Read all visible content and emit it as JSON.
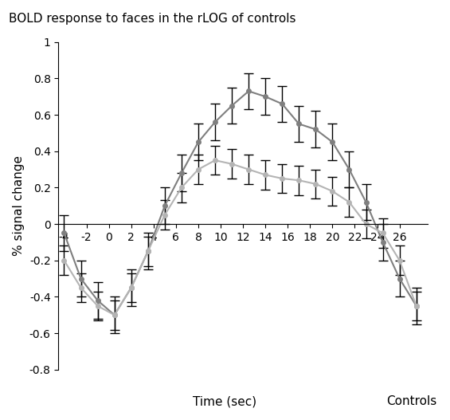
{
  "chart_data": {
    "type": "line",
    "title": "BOLD response to faces in the rLOG of controls",
    "x_label": "Time (sec)",
    "y_label": "% signal change",
    "annotations": [
      "Controls"
    ],
    "x": [
      -4,
      -2.5,
      -1,
      0.5,
      2,
      3.5,
      5,
      6.5,
      8,
      9.5,
      11,
      12.5,
      14,
      15.5,
      17,
      18.5,
      20,
      21.5,
      23,
      24.5,
      26,
      27.5
    ],
    "series": [
      {
        "color": "#7f7f7f",
        "marker": "o",
        "values": [
          -0.05,
          -0.3,
          -0.42,
          -0.5,
          -0.35,
          -0.15,
          0.1,
          0.28,
          0.45,
          0.56,
          0.65,
          0.73,
          0.7,
          0.66,
          0.55,
          0.52,
          0.45,
          0.3,
          0.12,
          -0.1,
          -0.3,
          -0.45
        ],
        "errors": [
          0.1,
          0.1,
          0.1,
          0.1,
          0.1,
          0.1,
          0.1,
          0.1,
          0.1,
          0.1,
          0.1,
          0.1,
          0.1,
          0.1,
          0.1,
          0.1,
          0.1,
          0.1,
          0.1,
          0.1,
          0.1,
          0.1
        ]
      },
      {
        "color": "#b4b4b4",
        "marker": "o",
        "values": [
          -0.2,
          -0.35,
          -0.45,
          -0.5,
          -0.35,
          -0.15,
          0.05,
          0.2,
          0.3,
          0.35,
          0.33,
          0.3,
          0.27,
          0.25,
          0.24,
          0.22,
          0.18,
          0.12,
          0.0,
          -0.05,
          -0.2,
          -0.45
        ],
        "errors": [
          0.08,
          0.08,
          0.08,
          0.08,
          0.08,
          0.08,
          0.08,
          0.08,
          0.08,
          0.08,
          0.08,
          0.08,
          0.08,
          0.08,
          0.08,
          0.08,
          0.08,
          0.08,
          0.08,
          0.08,
          0.08,
          0.08
        ]
      }
    ],
    "xlim": [
      -4.5,
      28.5
    ],
    "xticks": [
      -4,
      -2,
      0,
      2,
      4,
      6,
      8,
      10,
      12,
      14,
      16,
      18,
      20,
      22,
      24,
      26
    ],
    "ylim": [
      -0.8,
      1
    ],
    "yticks": [
      -0.8,
      -0.6,
      -0.4,
      -0.2,
      0,
      0.2,
      0.4,
      0.6,
      0.8,
      1
    ],
    "grid": false
  }
}
